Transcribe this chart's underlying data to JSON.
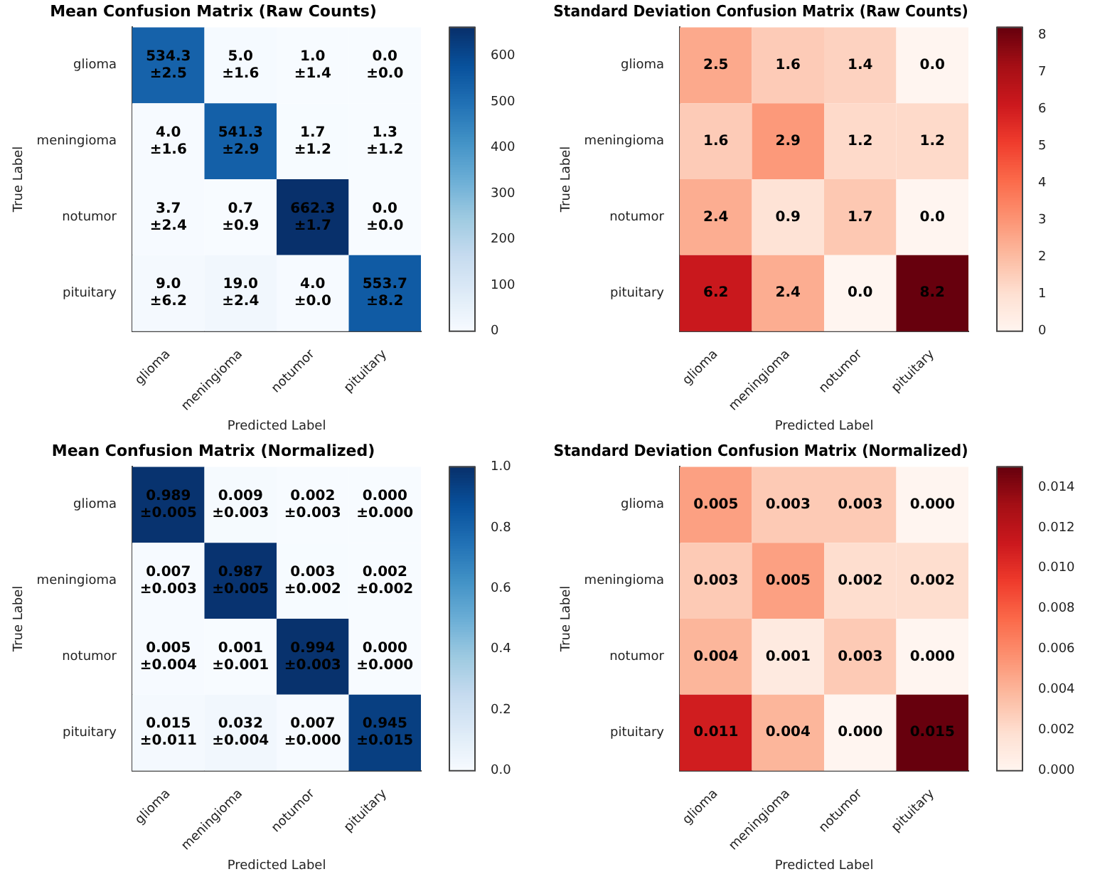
{
  "chart_data": [
    {
      "type": "heatmap",
      "title": "Mean Confusion Matrix (Raw Counts)",
      "xlabel": "Predicted Label",
      "ylabel": "True Label",
      "categories": [
        "glioma",
        "meningioma",
        "notumor",
        "pituitary"
      ],
      "y_categories": [
        "glioma",
        "meningioma",
        "notumor",
        "pituitary"
      ],
      "cells": [
        [
          534.3,
          5.0,
          1.0,
          0.0
        ],
        [
          4.0,
          541.3,
          1.7,
          1.3
        ],
        [
          3.7,
          0.7,
          662.3,
          0.0
        ],
        [
          9.0,
          19.0,
          4.0,
          553.7
        ]
      ],
      "cell_labels": [
        [
          "534.3\n±2.5",
          "5.0\n±1.6",
          "1.0\n±1.4",
          "0.0\n±0.0"
        ],
        [
          "4.0\n±1.6",
          "541.3\n±2.9",
          "1.7\n±1.2",
          "1.3\n±1.2"
        ],
        [
          "3.7\n±2.4",
          "0.7\n±0.9",
          "662.3\n±1.7",
          "0.0\n±0.0"
        ],
        [
          "9.0\n±6.2",
          "19.0\n±2.4",
          "4.0\n±0.0",
          "553.7\n±8.2"
        ]
      ],
      "clim": [
        0,
        662.3
      ],
      "cticks": [
        0,
        100,
        200,
        300,
        400,
        500,
        600
      ],
      "colors": [
        "#f7fbff",
        "#deebf7",
        "#c6dbef",
        "#9ecae1",
        "#6baed6",
        "#4292c6",
        "#2171b5",
        "#08519c",
        "#08306b"
      ]
    },
    {
      "type": "heatmap",
      "title": "Standard Deviation Confusion Matrix (Raw Counts)",
      "xlabel": "Predicted Label",
      "ylabel": "True Label",
      "categories": [
        "glioma",
        "meningioma",
        "notumor",
        "pituitary"
      ],
      "y_categories": [
        "glioma",
        "meningioma",
        "notumor",
        "pituitary"
      ],
      "cells": [
        [
          2.5,
          1.6,
          1.4,
          0.0
        ],
        [
          1.6,
          2.9,
          1.2,
          1.2
        ],
        [
          2.4,
          0.9,
          1.7,
          0.0
        ],
        [
          6.2,
          2.4,
          0.0,
          8.2
        ]
      ],
      "cell_labels": [
        [
          "2.5",
          "1.6",
          "1.4",
          "0.0"
        ],
        [
          "1.6",
          "2.9",
          "1.2",
          "1.2"
        ],
        [
          "2.4",
          "0.9",
          "1.7",
          "0.0"
        ],
        [
          "6.2",
          "2.4",
          "0.0",
          "8.2"
        ]
      ],
      "clim": [
        0,
        8.2
      ],
      "cticks": [
        0,
        1,
        2,
        3,
        4,
        5,
        6,
        7,
        8
      ],
      "colors": [
        "#fff5f0",
        "#fee0d2",
        "#fcbba1",
        "#fc9272",
        "#fb6a4a",
        "#ef3b2c",
        "#cb181d",
        "#a50f15",
        "#67000d"
      ]
    },
    {
      "type": "heatmap",
      "title": "Mean Confusion Matrix (Normalized)",
      "xlabel": "Predicted Label",
      "ylabel": "True Label",
      "categories": [
        "glioma",
        "meningioma",
        "notumor",
        "pituitary"
      ],
      "y_categories": [
        "glioma",
        "meningioma",
        "notumor",
        "pituitary"
      ],
      "cells": [
        [
          0.989,
          0.009,
          0.002,
          0.0
        ],
        [
          0.007,
          0.987,
          0.003,
          0.002
        ],
        [
          0.005,
          0.001,
          0.994,
          0.0
        ],
        [
          0.015,
          0.032,
          0.007,
          0.945
        ]
      ],
      "cell_labels": [
        [
          "0.989\n±0.005",
          "0.009\n±0.003",
          "0.002\n±0.003",
          "0.000\n±0.000"
        ],
        [
          "0.007\n±0.003",
          "0.987\n±0.005",
          "0.003\n±0.002",
          "0.002\n±0.002"
        ],
        [
          "0.005\n±0.004",
          "0.001\n±0.001",
          "0.994\n±0.003",
          "0.000\n±0.000"
        ],
        [
          "0.015\n±0.011",
          "0.032\n±0.004",
          "0.007\n±0.000",
          "0.945\n±0.015"
        ]
      ],
      "clim": [
        0,
        1.0
      ],
      "cticks": [
        {
          "value": 0,
          "label": "0.0"
        },
        {
          "value": 0.2,
          "label": "0.2"
        },
        {
          "value": 0.4,
          "label": "0.4"
        },
        {
          "value": 0.6,
          "label": "0.6"
        },
        {
          "value": 0.8,
          "label": "0.8"
        },
        {
          "value": 1,
          "label": "1.0"
        }
      ],
      "colors": [
        "#f7fbff",
        "#deebf7",
        "#c6dbef",
        "#9ecae1",
        "#6baed6",
        "#4292c6",
        "#2171b5",
        "#08519c",
        "#08306b"
      ]
    },
    {
      "type": "heatmap",
      "title": "Standard Deviation Confusion Matrix (Normalized)",
      "xlabel": "Predicted Label",
      "ylabel": "True Label",
      "categories": [
        "glioma",
        "meningioma",
        "notumor",
        "pituitary"
      ],
      "y_categories": [
        "glioma",
        "meningioma",
        "notumor",
        "pituitary"
      ],
      "cells": [
        [
          0.005,
          0.003,
          0.003,
          0.0
        ],
        [
          0.003,
          0.005,
          0.002,
          0.002
        ],
        [
          0.004,
          0.001,
          0.003,
          0.0
        ],
        [
          0.011,
          0.004,
          0.0,
          0.015
        ]
      ],
      "cell_labels": [
        [
          "0.005",
          "0.003",
          "0.003",
          "0.000"
        ],
        [
          "0.003",
          "0.005",
          "0.002",
          "0.002"
        ],
        [
          "0.004",
          "0.001",
          "0.003",
          "0.000"
        ],
        [
          "0.011",
          "0.004",
          "0.000",
          "0.015"
        ]
      ],
      "clim": [
        0,
        0.015
      ],
      "cticks": [
        {
          "value": 0,
          "label": "0.000"
        },
        {
          "value": 0.002,
          "label": "0.002"
        },
        {
          "value": 0.004,
          "label": "0.004"
        },
        {
          "value": 0.006,
          "label": "0.006"
        },
        {
          "value": 0.008,
          "label": "0.008"
        },
        {
          "value": 0.01,
          "label": "0.010"
        },
        {
          "value": 0.012,
          "label": "0.012"
        },
        {
          "value": 0.014,
          "label": "0.014"
        }
      ],
      "colors": [
        "#fff5f0",
        "#fee0d2",
        "#fcbba1",
        "#fc9272",
        "#fb6a4a",
        "#ef3b2c",
        "#cb181d",
        "#a50f15",
        "#67000d"
      ]
    }
  ]
}
